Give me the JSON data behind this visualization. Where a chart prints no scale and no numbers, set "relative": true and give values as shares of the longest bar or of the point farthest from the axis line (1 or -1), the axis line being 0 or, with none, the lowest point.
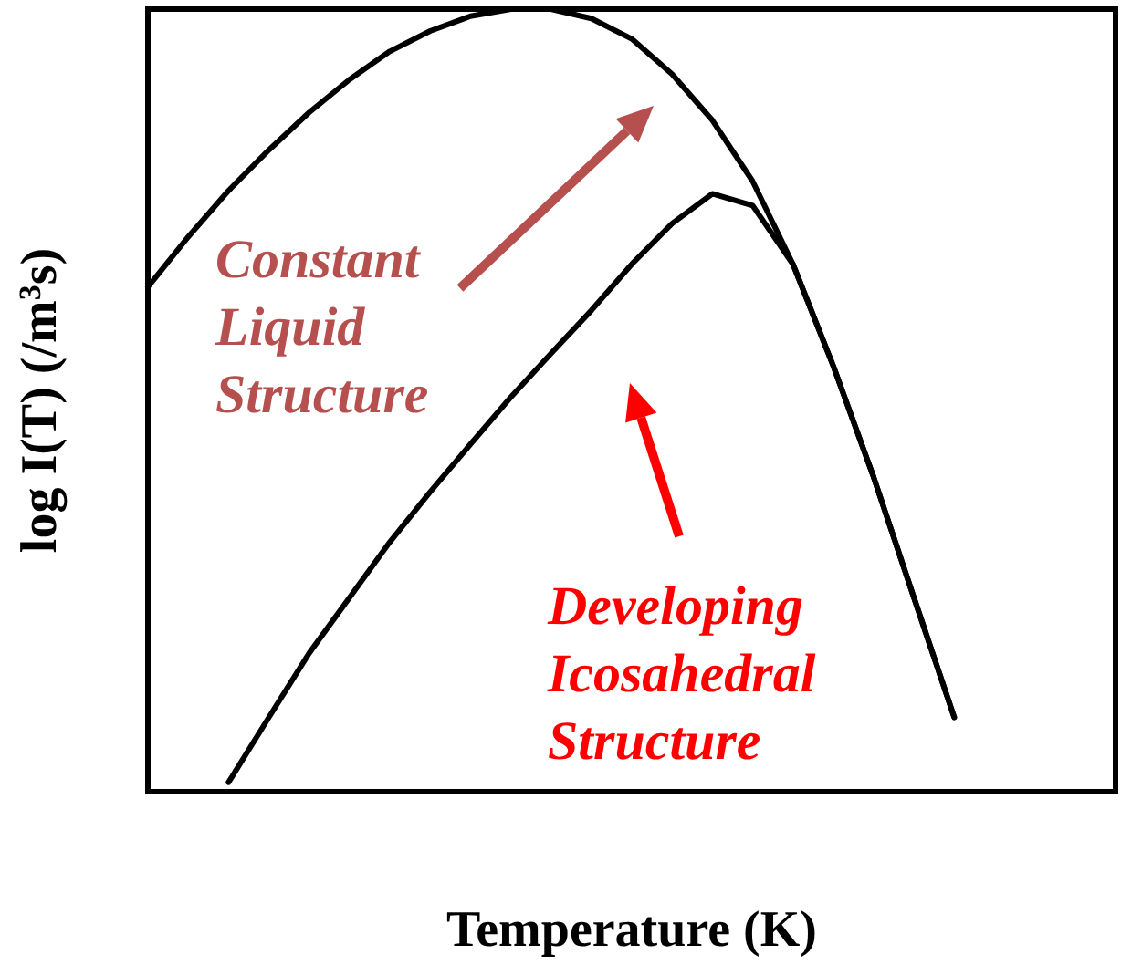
{
  "chart_data": {
    "type": "line",
    "relative": true,
    "xlabel": "Temperature (K)",
    "ylabel": "log I(T) (/m$^{3}$s)",
    "categories": [
      null,
      null,
      null,
      null,
      null,
      null,
      null,
      null,
      null,
      null,
      null,
      null,
      null,
      null,
      null,
      null,
      null,
      null,
      null,
      null,
      null,
      null,
      null,
      null,
      null
    ],
    "series": [
      {
        "color": "#000000",
        "values": [
          0.645,
          0.709,
          0.768,
          0.82,
          0.868,
          0.91,
          0.946,
          0.972,
          0.991,
          1.0,
          1.0,
          0.988,
          0.962,
          0.917,
          0.858,
          0.78,
          0.674,
          0.544,
          0.402,
          0.248,
          0.095,
          null,
          null,
          null,
          null
        ]
      },
      {
        "color": "#000000",
        "values": [
          null,
          null,
          0.012,
          0.095,
          0.177,
          0.248,
          0.319,
          0.383,
          0.444,
          0.504,
          0.56,
          0.615,
          0.674,
          0.726,
          0.764,
          0.749,
          0.674,
          0.544,
          0.402,
          0.248,
          0.095,
          null,
          null,
          null,
          null
        ]
      }
    ],
    "marker": "none",
    "grid": false,
    "annotations": [
      "Constant Liquid Structure",
      "Developing Icosahedral Structure"
    ]
  }
}
